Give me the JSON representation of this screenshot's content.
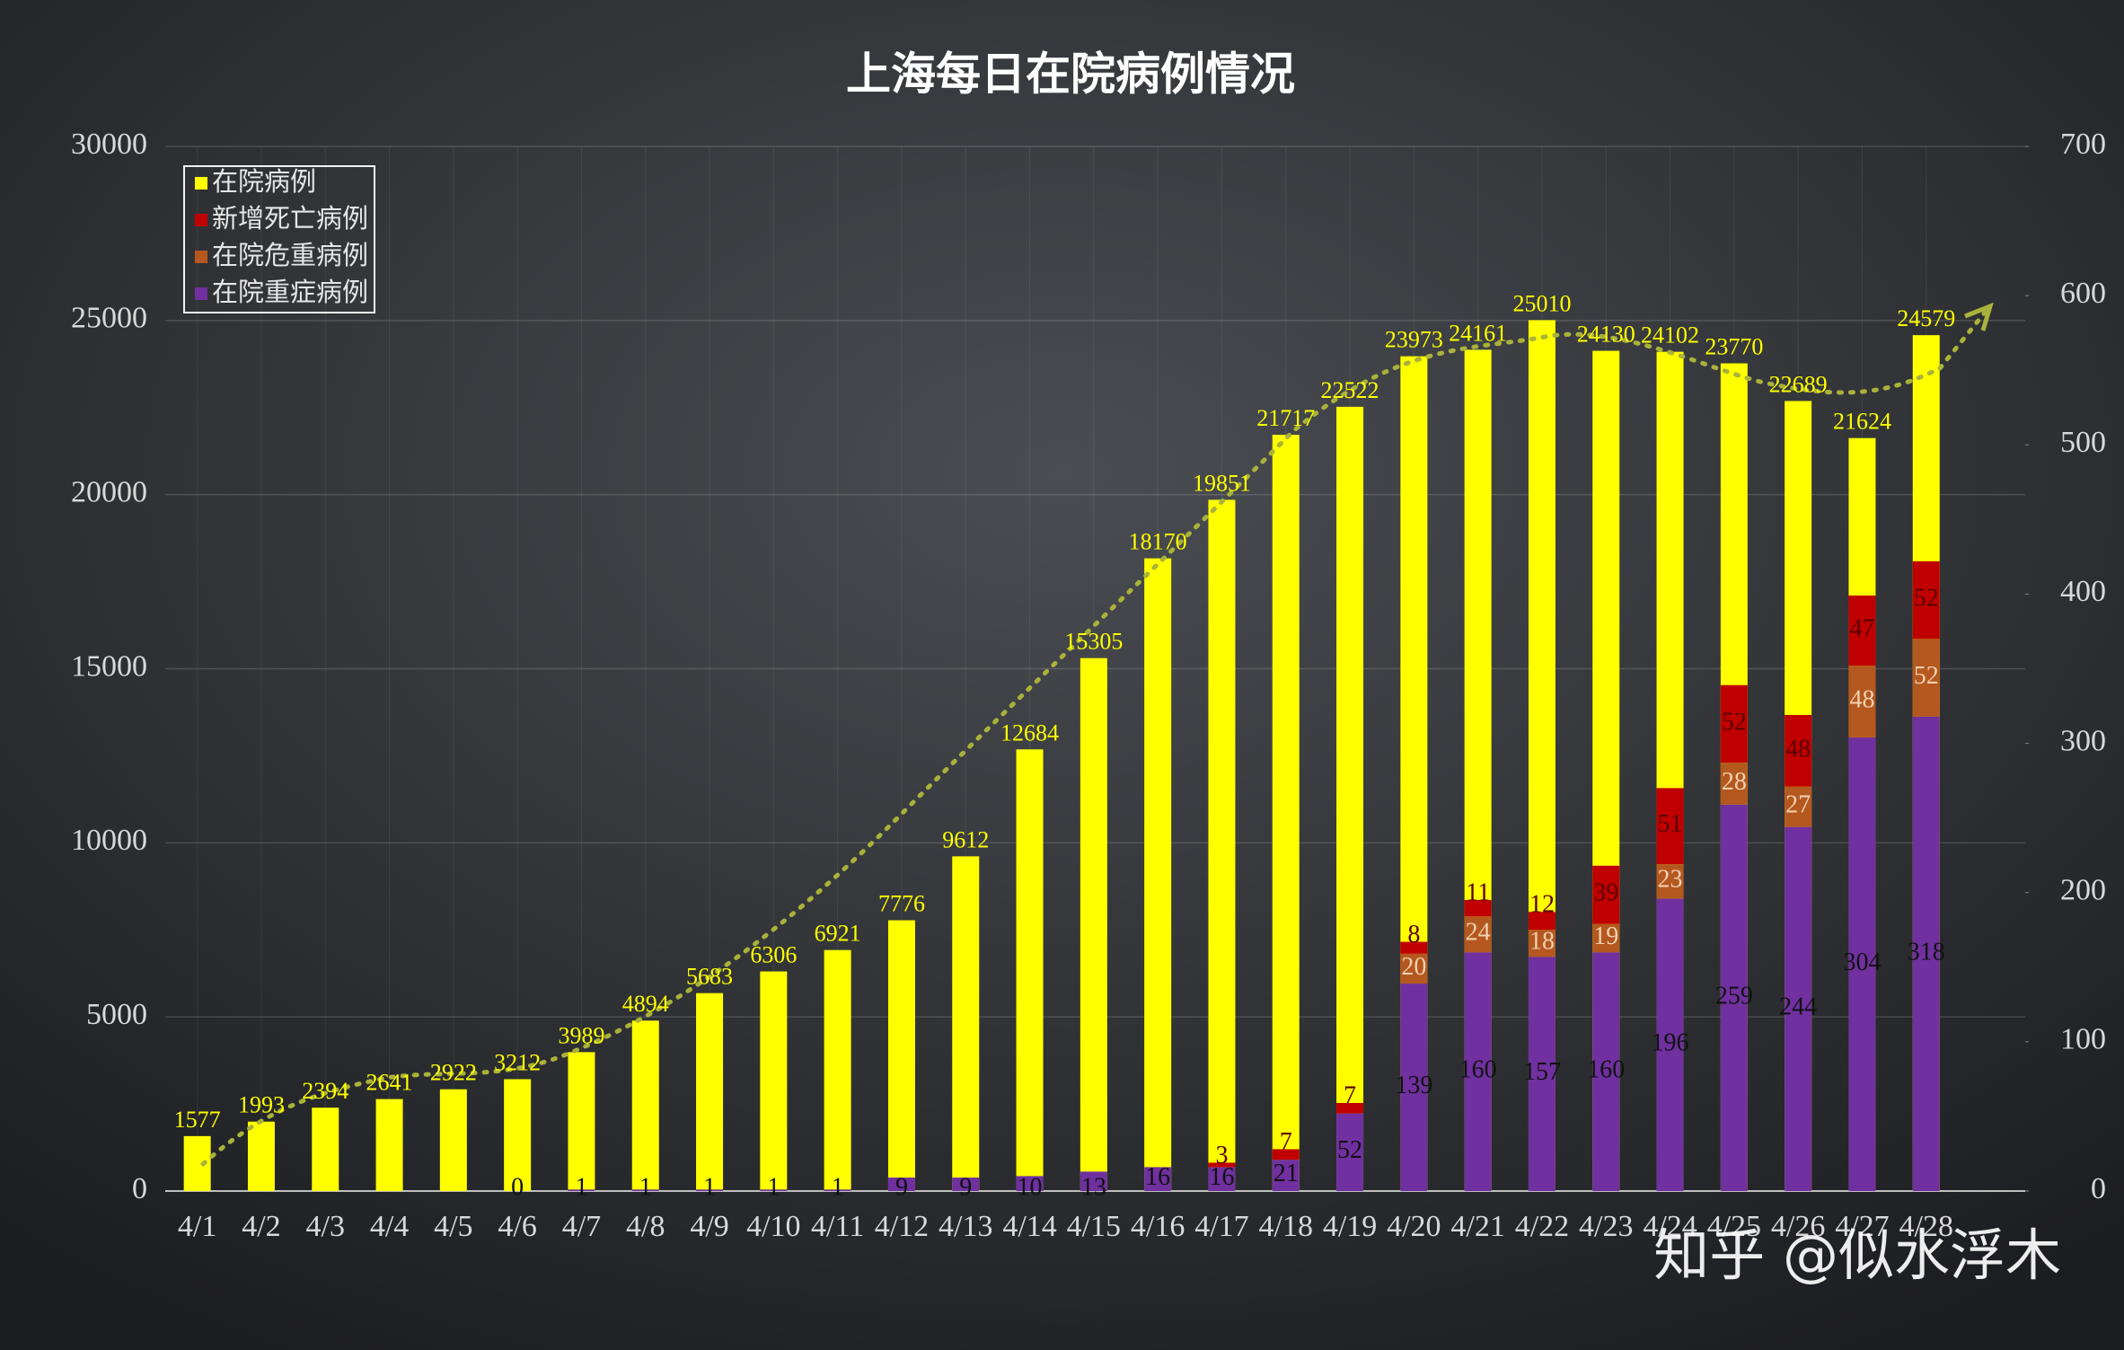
{
  "chart_data": {
    "type": "bar",
    "title": "上海每日在院病例情况",
    "categories": [
      "4/1",
      "4/2",
      "4/3",
      "4/4",
      "4/5",
      "4/6",
      "4/7",
      "4/8",
      "4/9",
      "4/10",
      "4/11",
      "4/12",
      "4/13",
      "4/14",
      "4/15",
      "4/16",
      "4/17",
      "4/18",
      "4/19",
      "4/20",
      "4/21",
      "4/22",
      "4/23",
      "4/24",
      "4/25",
      "4/26",
      "4/27",
      "4/28"
    ],
    "series": [
      {
        "name": "在院病例",
        "color": "#ffff00",
        "axis": "y",
        "values": [
          1577,
          1993,
          2394,
          2641,
          2922,
          3212,
          3989,
          4894,
          5683,
          6306,
          6921,
          7776,
          9612,
          12684,
          15305,
          18170,
          19851,
          21717,
          22522,
          23973,
          24161,
          25010,
          24130,
          24102,
          23770,
          22689,
          21624,
          24579
        ]
      },
      {
        "name": "新增死亡病例",
        "color": "#c00000",
        "axis": "y2",
        "values": [
          null,
          null,
          null,
          null,
          null,
          null,
          null,
          null,
          null,
          null,
          null,
          null,
          null,
          null,
          null,
          null,
          3,
          7,
          7,
          8,
          11,
          12,
          39,
          51,
          52,
          48,
          47,
          52
        ]
      },
      {
        "name": "在院危重病例",
        "color": "#b4581f",
        "axis": "y2",
        "values": [
          null,
          null,
          null,
          null,
          null,
          null,
          null,
          null,
          null,
          null,
          null,
          null,
          null,
          null,
          null,
          null,
          null,
          null,
          null,
          20,
          24,
          18,
          19,
          23,
          28,
          27,
          48,
          52
        ]
      },
      {
        "name": "在院重症病例",
        "color": "#7030a0",
        "axis": "y2",
        "values": [
          null,
          null,
          null,
          null,
          null,
          0,
          1,
          1,
          1,
          1,
          1,
          9,
          9,
          10,
          13,
          16,
          16,
          21,
          52,
          139,
          160,
          157,
          160,
          196,
          259,
          244,
          304,
          318
        ]
      }
    ],
    "ylim": [
      0,
      30000
    ],
    "yticks": [
      0,
      5000,
      10000,
      15000,
      20000,
      25000,
      30000
    ],
    "y2lim": [
      0,
      700
    ],
    "y2ticks": [
      0,
      100,
      200,
      300,
      400,
      500,
      600,
      700
    ],
    "grid": true,
    "legend": "top-left",
    "watermark": "知乎 @似水浮木"
  }
}
